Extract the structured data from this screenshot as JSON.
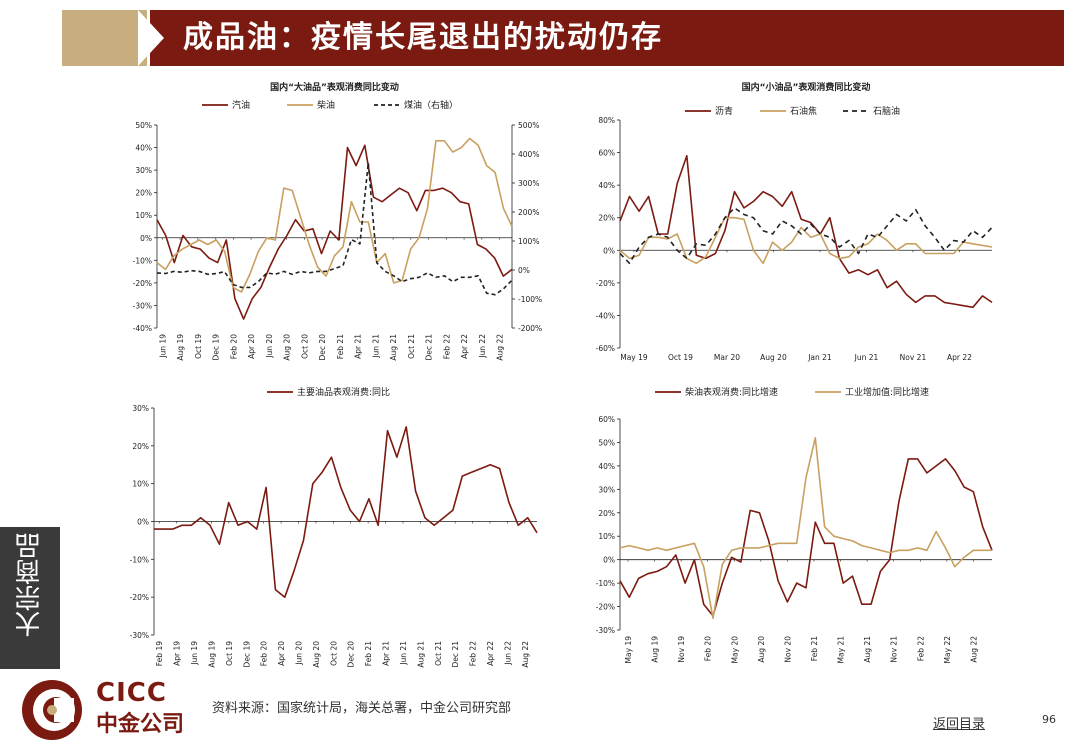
{
  "header": {
    "title": "成品油：疫情长尾退出的扰动仍存"
  },
  "sidebar": {
    "label": "大宗商品"
  },
  "footer": {
    "source": "资料来源：国家统计局，海关总署，中金公司研究部",
    "back_link": "返回目录",
    "page_number": "96"
  },
  "logo": {
    "en": "CICC",
    "cn": "中金公司"
  },
  "colors": {
    "brand": "#7b1a10",
    "tan": "#c8ad7e",
    "maroon": "#7b1a10",
    "gold": "#c8a060",
    "black": "#222222"
  },
  "chart_data": [
    {
      "id": "c1",
      "type": "line",
      "title": "国内“大油品”表观消费同比变动",
      "x_labels": [
        "Jun 19",
        "Aug 19",
        "Oct 19",
        "Dec 19",
        "Feb 20",
        "Apr 20",
        "Jun 20",
        "Aug 20",
        "Oct 20",
        "Dec 20",
        "Feb 21",
        "Apr 21",
        "Jun 21",
        "Aug 21",
        "Oct 21",
        "Dec 21",
        "Feb 22",
        "Apr 22",
        "Jun 22",
        "Aug 22"
      ],
      "ylim": [
        -40,
        50
      ],
      "yticks": [
        "-40%",
        "-30%",
        "-20%",
        "-10%",
        "0%",
        "10%",
        "20%",
        "30%",
        "40%",
        "50%"
      ],
      "y2lim": [
        -200,
        500
      ],
      "y2ticks": [
        "-200%",
        "-100%",
        "0%",
        "100%",
        "200%",
        "300%",
        "400%",
        "500%"
      ],
      "series": [
        {
          "name": "汽油",
          "color": "#7b1a10",
          "dash": "",
          "axis": "left",
          "values": [
            8,
            1,
            -11,
            1,
            -4,
            -5,
            -9,
            -11,
            -1,
            -27,
            -36,
            -27,
            -22,
            -13,
            -5,
            1,
            8,
            3,
            4,
            -7,
            3,
            -1,
            40,
            32,
            41,
            18,
            16,
            19,
            22,
            20,
            12,
            21,
            21,
            22,
            20,
            16,
            15,
            -3,
            -5,
            -9,
            -17,
            -14
          ]
        },
        {
          "name": "柴油",
          "color": "#c8a060",
          "dash": "",
          "axis": "left",
          "values": [
            -11,
            -14,
            -8,
            -5,
            -3,
            -1,
            -3,
            -1,
            -6,
            -22,
            -24,
            -16,
            -6,
            0,
            -1,
            22,
            21,
            9,
            -3,
            -13,
            -17,
            -8,
            -4,
            16,
            7,
            7,
            -11,
            -7,
            -20,
            -19,
            -5,
            0,
            13,
            43,
            43,
            38,
            40,
            44,
            41,
            32,
            29,
            13,
            5
          ]
        },
        {
          "name": "煤油（右轴）",
          "color": "#222222",
          "dash": "4,3",
          "axis": "right",
          "values": [
            -10,
            -12,
            -5,
            -8,
            -2,
            -5,
            -15,
            -12,
            -6,
            -50,
            -60,
            -60,
            -40,
            -10,
            -15,
            -5,
            -15,
            -5,
            -10,
            -5,
            -5,
            5,
            15,
            105,
            90,
            370,
            25,
            -5,
            -20,
            -40,
            -30,
            -25,
            -10,
            -25,
            -20,
            -40,
            -25,
            -25,
            -20,
            -80,
            -85,
            -65,
            -35
          ]
        }
      ]
    },
    {
      "id": "c2",
      "type": "line",
      "title": "国内“小油品”表观消费同比变动",
      "x_labels": [
        "May 19",
        "Oct 19",
        "Mar 20",
        "Aug 20",
        "Jan 21",
        "Jun 21",
        "Nov 21",
        "Apr 22"
      ],
      "ylim": [
        -60,
        80
      ],
      "yticks": [
        "-60%",
        "-40%",
        "-20%",
        "0%",
        "20%",
        "40%",
        "60%",
        "80%"
      ],
      "series": [
        {
          "name": "沥青",
          "color": "#7b1a10",
          "dash": "",
          "values": [
            18,
            33,
            24,
            33,
            10,
            10,
            41,
            58,
            -3,
            -5,
            -2,
            12,
            36,
            26,
            30,
            36,
            33,
            27,
            36,
            19,
            17,
            10,
            20,
            -5,
            -14,
            -12,
            -15,
            -12,
            -23,
            -19,
            -27,
            -32,
            -28,
            -28,
            -32,
            -33,
            -34,
            -35,
            -28,
            -32
          ]
        },
        {
          "name": "石油焦",
          "color": "#c8a060",
          "dash": "",
          "values": [
            0,
            -5,
            -3,
            8,
            8,
            7,
            10,
            -5,
            -8,
            -4,
            8,
            20,
            20,
            19,
            0,
            -8,
            5,
            0,
            5,
            14,
            8,
            10,
            -2,
            -5,
            -4,
            2,
            4,
            10,
            6,
            0,
            4,
            4,
            -2,
            -2,
            -2,
            -2,
            5,
            4,
            3,
            2
          ]
        },
        {
          "name": "石脑油",
          "color": "#222222",
          "dash": "5,4",
          "values": [
            -2,
            -8,
            2,
            8,
            10,
            8,
            0,
            -5,
            4,
            3,
            10,
            20,
            26,
            22,
            20,
            12,
            10,
            18,
            15,
            10,
            16,
            10,
            8,
            2,
            6,
            -2,
            10,
            8,
            15,
            22,
            18,
            25,
            15,
            8,
            0,
            6,
            5,
            12,
            8,
            14
          ]
        }
      ]
    },
    {
      "id": "c3",
      "type": "line",
      "title": "",
      "x_labels": [
        "Feb 19",
        "Apr 19",
        "Jun 19",
        "Aug 19",
        "Oct 19",
        "Dec 19",
        "Feb 20",
        "Apr 20",
        "Jun 20",
        "Aug 20",
        "Oct 20",
        "Dec 20",
        "Feb 21",
        "Apr 21",
        "Jun 21",
        "Aug 21",
        "Oct 21",
        "Dec 21",
        "Feb 22",
        "Apr 22",
        "Jun 22",
        "Aug 22"
      ],
      "ylim": [
        -30,
        30
      ],
      "yticks": [
        "-30%",
        "-20%",
        "-10%",
        "0%",
        "10%",
        "20%",
        "30%"
      ],
      "series": [
        {
          "name": "主要油品表观消费:同比",
          "color": "#7b1a10",
          "dash": "",
          "values": [
            -2,
            -2,
            -2,
            -1,
            -1,
            1,
            -1,
            -6,
            5,
            -1,
            0,
            -2,
            9,
            -18,
            -20,
            -13,
            -5,
            10,
            13,
            17,
            9,
            3,
            0,
            6,
            -1,
            24,
            17,
            25,
            8,
            1,
            -1,
            1,
            3,
            12,
            13,
            14,
            15,
            14,
            5,
            -1,
            1,
            -3
          ]
        }
      ]
    },
    {
      "id": "c4",
      "type": "line",
      "title": "",
      "x_labels": [
        "May 19",
        "Aug 19",
        "Nov 19",
        "Feb 20",
        "May 20",
        "Aug 20",
        "Nov 20",
        "Feb 21",
        "May 21",
        "Aug 21",
        "Nov 21",
        "Feb 22",
        "May 22",
        "Aug 22"
      ],
      "ylim": [
        -30,
        60
      ],
      "yticks": [
        "-30%",
        "-20%",
        "-10%",
        "0%",
        "10%",
        "20%",
        "30%",
        "40%",
        "50%",
        "60%"
      ],
      "series": [
        {
          "name": "柴油表观消费:同比增速",
          "color": "#7b1a10",
          "dash": "",
          "values": [
            -9,
            -16,
            -8,
            -6,
            -5,
            -3,
            2,
            -10,
            0,
            -19,
            -24,
            -10,
            1,
            -1,
            21,
            20,
            8,
            -9,
            -18,
            -10,
            -12,
            16,
            7,
            7,
            -10,
            -7,
            -19,
            -19,
            -5,
            0,
            25,
            43,
            43,
            37,
            40,
            43,
            38,
            31,
            29,
            14,
            4
          ]
        },
        {
          "name": "工业增加值:同比增速",
          "color": "#c8a060",
          "dash": "",
          "values": [
            5,
            6,
            5,
            4,
            5,
            4,
            5,
            6,
            7,
            -3,
            -25,
            -2,
            4,
            5,
            5,
            5,
            6,
            7,
            7,
            7,
            35,
            52,
            14,
            10,
            9,
            8,
            6,
            5,
            4,
            3,
            4,
            4,
            5,
            4,
            12,
            5,
            -3,
            1,
            4,
            4,
            4
          ]
        }
      ]
    }
  ]
}
